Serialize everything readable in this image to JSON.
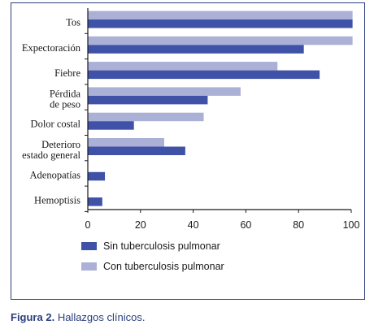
{
  "chart_data": {
    "type": "bar",
    "orientation": "horizontal",
    "categories": [
      [
        "Tos"
      ],
      [
        "Expectoración"
      ],
      [
        "Fiebre"
      ],
      [
        "Pérdida",
        "de peso"
      ],
      [
        "Dolor costal"
      ],
      [
        "Deterioro",
        "estado general"
      ],
      [
        "Adenopatías"
      ],
      [
        "Hemoptisis"
      ]
    ],
    "series": [
      {
        "name": "Con tuberculosis pulmonar",
        "color": "#aab0d6",
        "values": [
          100.5,
          100.5,
          72,
          58,
          44,
          29,
          null,
          null
        ]
      },
      {
        "name": "Sin tuberculosis pulmonar",
        "color": "#3f52a7",
        "values": [
          100.5,
          82,
          88,
          45.5,
          17.5,
          37,
          6.5,
          5.5
        ]
      }
    ],
    "xlim": [
      0,
      100
    ],
    "xticks": [
      "0",
      "20",
      "40",
      "60",
      "80",
      "100"
    ],
    "grid": false,
    "legend_position": "bottom"
  },
  "caption": {
    "label": "Figura 2.",
    "text": "Hallazgos clínicos."
  }
}
